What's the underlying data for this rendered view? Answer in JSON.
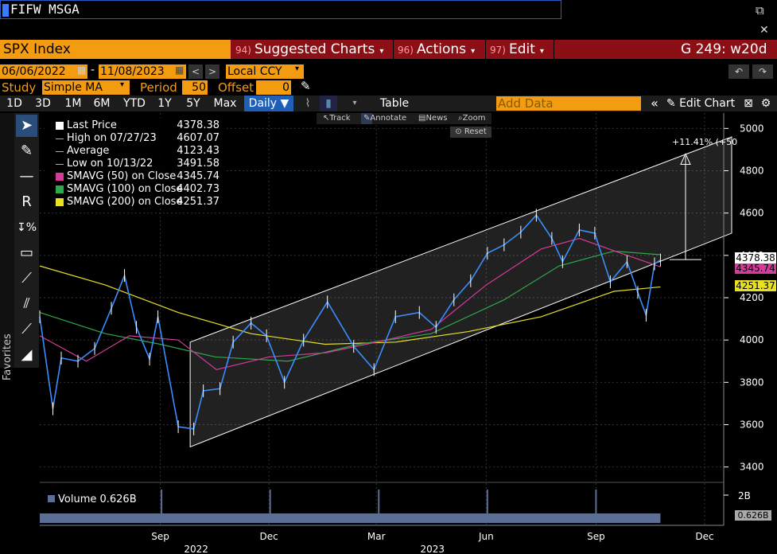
{
  "command_line": "FIFW MSGA",
  "header": {
    "ticker": "SPX Index",
    "menu": [
      {
        "num": "94)",
        "label": "Suggested Charts"
      },
      {
        "num": "96)",
        "label": "Actions"
      },
      {
        "num": "97)",
        "label": "Edit"
      }
    ],
    "chart_id": "G 249: w20d"
  },
  "options": {
    "start_date": "06/06/2022",
    "end_date": "11/08/2023",
    "currency": "Local CCY",
    "study_label": "Study",
    "study_value": "Simple MA",
    "period_label": "Period",
    "period_value": "50",
    "offset_label": "Offset",
    "offset_value": "0"
  },
  "toolbar": {
    "ranges": [
      "1D",
      "3D",
      "1M",
      "6M",
      "YTD",
      "1Y",
      "5Y",
      "Max"
    ],
    "frequency": "Daily",
    "table_label": "Table",
    "add_data_placeholder": "Add Data",
    "edit_chart_label": "Edit Chart"
  },
  "subtools": {
    "track": "Track",
    "annotate": "Annotate",
    "news": "News",
    "zoom": "Zoom",
    "reset": "Reset"
  },
  "favorites_label": "Favorites",
  "legend": [
    {
      "label": "Last Price",
      "value": "4378.38",
      "color": "#ffffff",
      "kind": "box"
    },
    {
      "label": "High on 07/27/23",
      "value": "4607.07",
      "color": "#ffffff",
      "kind": "high"
    },
    {
      "label": "Average",
      "value": "4123.43",
      "color": "#ffffff",
      "kind": "avg"
    },
    {
      "label": "Low on 10/13/22",
      "value": "3491.58",
      "color": "#ffffff",
      "kind": "low"
    },
    {
      "label": "SMAVG (50)  on Close",
      "value": "4345.74",
      "color": "#d63a9a",
      "kind": "box"
    },
    {
      "label": "SMAVG (100)  on Close",
      "value": "4402.73",
      "color": "#2ea84a",
      "kind": "box"
    },
    {
      "label": "SMAVG (200)  on Close",
      "value": "4251.37",
      "color": "#e8e020",
      "kind": "box"
    }
  ],
  "price_tags": {
    "last": "4378.38",
    "sma50": "4345.74",
    "sma200": "4251.37",
    "volume": "0.626B"
  },
  "annotation": "+11.41% (+50",
  "volume_label": "Volume 0.626B",
  "chart_data": {
    "type": "line",
    "x_ticks": [
      "Sep",
      "Dec",
      "Mar",
      "Jun",
      "Sep",
      "Dec"
    ],
    "year_labels": [
      "2022",
      "2023"
    ],
    "y_ticks": [
      3400,
      3600,
      3800,
      4000,
      4200,
      4400,
      4600,
      4800,
      5000
    ],
    "ylim": [
      3380,
      5020
    ],
    "volume_ticks": [
      "2B"
    ],
    "series": [
      {
        "name": "Last Price",
        "color": "#3a8dff",
        "x": [
          "2022-06-06",
          "2022-06-17",
          "2022-06-24",
          "2022-07-08",
          "2022-07-22",
          "2022-08-05",
          "2022-08-16",
          "2022-08-26",
          "2022-09-06",
          "2022-09-13",
          "2022-09-30",
          "2022-10-13",
          "2022-10-21",
          "2022-11-04",
          "2022-11-15",
          "2022-11-30",
          "2022-12-13",
          "2022-12-28",
          "2023-01-13",
          "2023-02-02",
          "2023-02-24",
          "2023-03-13",
          "2023-03-31",
          "2023-04-20",
          "2023-05-04",
          "2023-05-19",
          "2023-06-02",
          "2023-06-16",
          "2023-06-30",
          "2023-07-14",
          "2023-07-27",
          "2023-08-09",
          "2023-08-18",
          "2023-09-01",
          "2023-09-14",
          "2023-09-27",
          "2023-10-11",
          "2023-10-20",
          "2023-10-27",
          "2023-11-03",
          "2023-11-08"
        ],
        "values": [
          4110,
          3675,
          3915,
          3900,
          3960,
          4150,
          4305,
          4060,
          3910,
          4110,
          3590,
          3580,
          3760,
          3770,
          3990,
          4080,
          4020,
          3800,
          3999,
          4180,
          3970,
          3860,
          4110,
          4130,
          4060,
          4190,
          4280,
          4410,
          4450,
          4510,
          4590,
          4480,
          4370,
          4520,
          4505,
          4275,
          4370,
          4225,
          4117,
          4360,
          4378
        ]
      },
      {
        "name": "SMAVG (50)",
        "color": "#d63a9a",
        "x": [
          "2022-06-06",
          "2022-07-15",
          "2022-08-20",
          "2022-09-30",
          "2022-11-01",
          "2022-12-15",
          "2023-02-01",
          "2023-03-15",
          "2023-04-30",
          "2023-06-15",
          "2023-07-31",
          "2023-09-01",
          "2023-10-01",
          "2023-11-08"
        ],
        "values": [
          4020,
          3900,
          4020,
          4000,
          3860,
          3920,
          3940,
          3990,
          4050,
          4260,
          4430,
          4480,
          4420,
          4346
        ]
      },
      {
        "name": "SMAVG (100)",
        "color": "#2ea84a",
        "x": [
          "2022-06-06",
          "2022-07-31",
          "2022-09-15",
          "2022-10-31",
          "2022-12-31",
          "2023-02-28",
          "2023-04-30",
          "2023-06-30",
          "2023-08-15",
          "2023-09-30",
          "2023-11-08"
        ],
        "values": [
          4130,
          4030,
          3980,
          3920,
          3900,
          3980,
          4030,
          4190,
          4350,
          4420,
          4403
        ]
      },
      {
        "name": "SMAVG (200)",
        "color": "#e8e020",
        "x": [
          "2022-06-06",
          "2022-07-31",
          "2022-09-30",
          "2022-11-30",
          "2023-01-31",
          "2023-03-31",
          "2023-05-31",
          "2023-07-31",
          "2023-09-30",
          "2023-11-08"
        ],
        "values": [
          4350,
          4260,
          4130,
          4030,
          3980,
          3990,
          4040,
          4110,
          4230,
          4251
        ]
      }
    ]
  }
}
